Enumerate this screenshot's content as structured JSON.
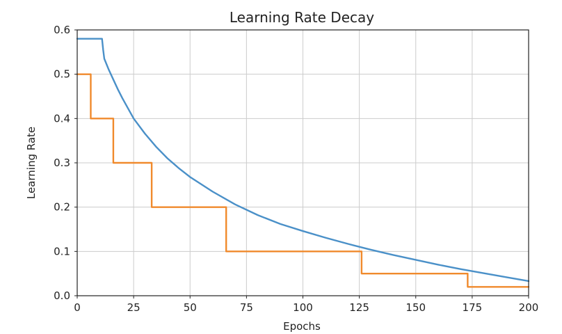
{
  "chart_data": {
    "type": "line",
    "title": "Learning Rate Decay",
    "xlabel": "Epochs",
    "ylabel": "Learning Rate",
    "xlim": [
      0,
      200
    ],
    "ylim": [
      0.0,
      0.6
    ],
    "xticks": [
      0,
      25,
      50,
      75,
      100,
      125,
      150,
      175,
      200
    ],
    "xtick_labels": [
      "0",
      "25",
      "50",
      "75",
      "100",
      "125",
      "150",
      "175",
      "200"
    ],
    "yticks": [
      0.0,
      0.1,
      0.2,
      0.3,
      0.4,
      0.5,
      0.6
    ],
    "ytick_labels": [
      "0.0",
      "0.1",
      "0.2",
      "0.3",
      "0.4",
      "0.5",
      "0.6"
    ],
    "grid": true,
    "series": [
      {
        "color": "#4a90c8",
        "step": false,
        "x": [
          0,
          11,
          11.5,
          12,
          14,
          16,
          18,
          20,
          25,
          30,
          35,
          40,
          45,
          50,
          60,
          70,
          80,
          90,
          100,
          110,
          120,
          130,
          140,
          150,
          160,
          170,
          180,
          190,
          200
        ],
        "y": [
          0.58,
          0.58,
          0.555,
          0.535,
          0.51,
          0.488,
          0.466,
          0.446,
          0.4,
          0.366,
          0.336,
          0.31,
          0.288,
          0.268,
          0.235,
          0.206,
          0.182,
          0.162,
          0.146,
          0.131,
          0.117,
          0.104,
          0.092,
          0.081,
          0.07,
          0.06,
          0.051,
          0.042,
          0.033
        ]
      },
      {
        "color": "#f08a2c",
        "step": true,
        "x": [
          0,
          6,
          6,
          16,
          16,
          33,
          33,
          66,
          66,
          126,
          126,
          173,
          173,
          200
        ],
        "y": [
          0.5,
          0.5,
          0.4,
          0.4,
          0.3,
          0.3,
          0.2,
          0.2,
          0.1,
          0.1,
          0.05,
          0.05,
          0.02,
          0.02
        ]
      }
    ]
  }
}
